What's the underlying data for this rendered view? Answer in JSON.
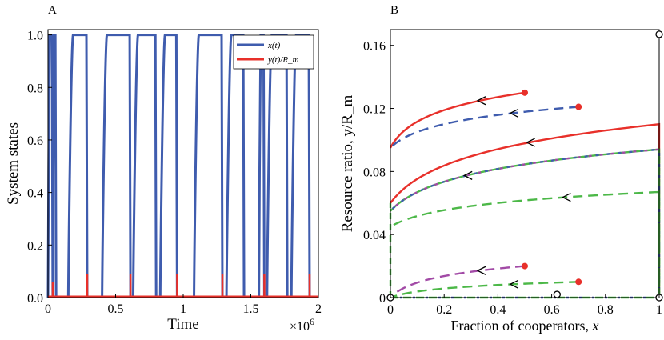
{
  "chart_data": [
    {
      "panel_label": "A",
      "type": "line",
      "xlabel": "Time",
      "ylabel": "System states",
      "x_multiplier_label": "×10",
      "x_multiplier_exponent": "6",
      "xlim": [
        0,
        2
      ],
      "ylim": [
        0,
        1.02
      ],
      "xticks": [
        "0",
        "0.5",
        "1",
        "1.5",
        "2"
      ],
      "yticks": [
        "0.0",
        "0.2",
        "0.4",
        "0.6",
        "0.8",
        "1.0"
      ],
      "legend_placement": "top-right",
      "series": [
        {
          "name": "x(t)",
          "color": "#3f5cae",
          "pulses": [
            {
              "start": 0.0,
              "end": 0.035
            },
            {
              "start": 0.035,
              "end": 0.06
            },
            {
              "start": 0.15,
              "end": 0.29
            },
            {
              "start": 0.4,
              "end": 0.61
            },
            {
              "start": 0.63,
              "end": 0.8
            },
            {
              "start": 0.83,
              "end": 0.955
            },
            {
              "start": 1.08,
              "end": 1.29
            },
            {
              "start": 1.32,
              "end": 1.45
            },
            {
              "start": 1.56,
              "end": 1.6
            },
            {
              "start": 1.62,
              "end": 1.77
            },
            {
              "start": 1.8,
              "end": 1.935
            }
          ]
        },
        {
          "name": "y(t)/R_m",
          "color": "#e8302a",
          "spikes": [
            {
              "x": 0.035,
              "y": 0.06
            },
            {
              "x": 0.29,
              "y": 0.09
            },
            {
              "x": 0.61,
              "y": 0.09
            },
            {
              "x": 0.955,
              "y": 0.09
            },
            {
              "x": 1.29,
              "y": 0.09
            },
            {
              "x": 1.6,
              "y": 0.09
            },
            {
              "x": 1.935,
              "y": 0.09
            }
          ]
        }
      ]
    },
    {
      "panel_label": "B",
      "type": "line",
      "xlabel": "Fraction of cooperators, x",
      "ylabel": "Resource ratio, y/R_m",
      "xlim": [
        0,
        1
      ],
      "ylim": [
        0,
        0.17
      ],
      "xticks": [
        "0",
        "0.2",
        "0.4",
        "0.6",
        "0.8",
        "1"
      ],
      "yticks": [
        "0",
        "0.04",
        "0.08",
        "0.12",
        "0.16"
      ],
      "trajectories": [
        {
          "color": "#e8302a",
          "dash": false,
          "start": [
            0.5,
            0.13
          ],
          "end_y": 0.095,
          "arrow_x": 0.33
        },
        {
          "color": "#3f5cae",
          "dash": true,
          "start": [
            0.7,
            0.121
          ],
          "end_y": 0.095,
          "arrow_x": 0.45
        },
        {
          "color": "#e8302a",
          "dash": false,
          "start": [
            1.0,
            0.11
          ],
          "end_y": 0.06,
          "arrow_x": 0.52
        },
        {
          "color": "#4cb848",
          "dash": false,
          "start": [
            1.0,
            0.094
          ],
          "end_y": 0.055,
          "arrow_x": 0.28,
          "overlay_colors": [
            "#3f5cae",
            "#a24aa6"
          ]
        },
        {
          "color": "#4cb848",
          "dash": true,
          "start": [
            1.0,
            0.067
          ],
          "end_y": 0.045,
          "arrow_x": 0.65
        },
        {
          "color": "#a24aa6",
          "dash": true,
          "start": [
            0.5,
            0.02
          ],
          "end_y": 0.0,
          "arrow_x": 0.33
        },
        {
          "color": "#4cb848",
          "dash": true,
          "start": [
            0.7,
            0.01
          ],
          "end_y": 0.0,
          "arrow_x": 0.45
        }
      ],
      "start_points": [
        [
          0.5,
          0.13
        ],
        [
          0.7,
          0.121
        ],
        [
          0.5,
          0.02
        ],
        [
          0.7,
          0.01
        ]
      ],
      "equilibria_open": [
        [
          0,
          0
        ],
        [
          1,
          0
        ],
        [
          1,
          0.167
        ],
        [
          0.62,
          0.002
        ]
      ]
    }
  ]
}
